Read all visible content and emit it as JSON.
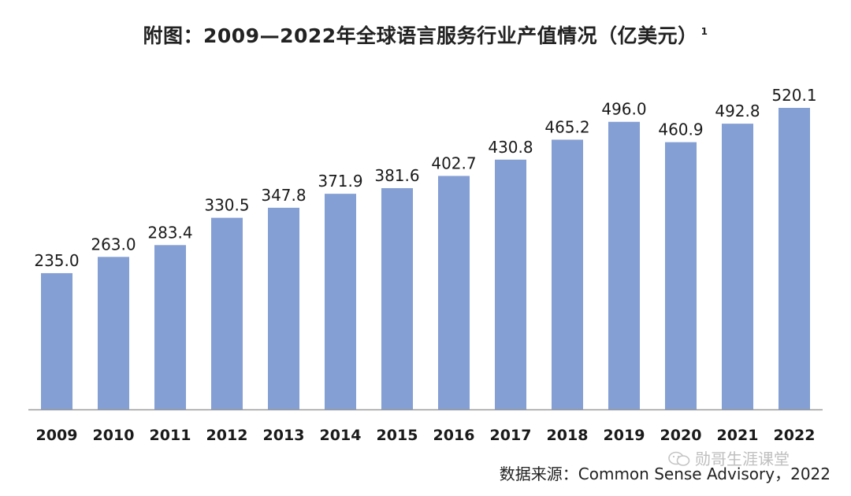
{
  "title": "附图：2009—2022年全球语言服务行业产值情况（亿美元）",
  "title_note": "1",
  "source": "数据来源：Common Sense Advisory，2022",
  "watermark": "勋哥生涯课堂",
  "colors": {
    "bar": "#849fd4",
    "axis": "#9a9a9a",
    "text": "#1a1a1a"
  },
  "chart_data": {
    "type": "bar",
    "title": "附图：2009—2022年全球语言服务行业产值情况（亿美元）",
    "categories": [
      "2009",
      "2010",
      "2011",
      "2012",
      "2013",
      "2014",
      "2015",
      "2016",
      "2017",
      "2018",
      "2019",
      "2020",
      "2021",
      "2022"
    ],
    "values": [
      235.0,
      263.0,
      283.4,
      330.5,
      347.8,
      371.9,
      381.6,
      402.7,
      430.8,
      465.2,
      496.0,
      460.9,
      492.8,
      520.1
    ],
    "value_labels": [
      "235.0",
      "263.0",
      "283.4",
      "330.5",
      "347.8",
      "371.9",
      "381.6",
      "402.7",
      "430.8",
      "465.2",
      "496.0",
      "460.9",
      "492.8",
      "520.1"
    ],
    "xlabel": "",
    "ylabel": "",
    "ylim": [
      0,
      545
    ],
    "grid": false,
    "legend": "none"
  }
}
